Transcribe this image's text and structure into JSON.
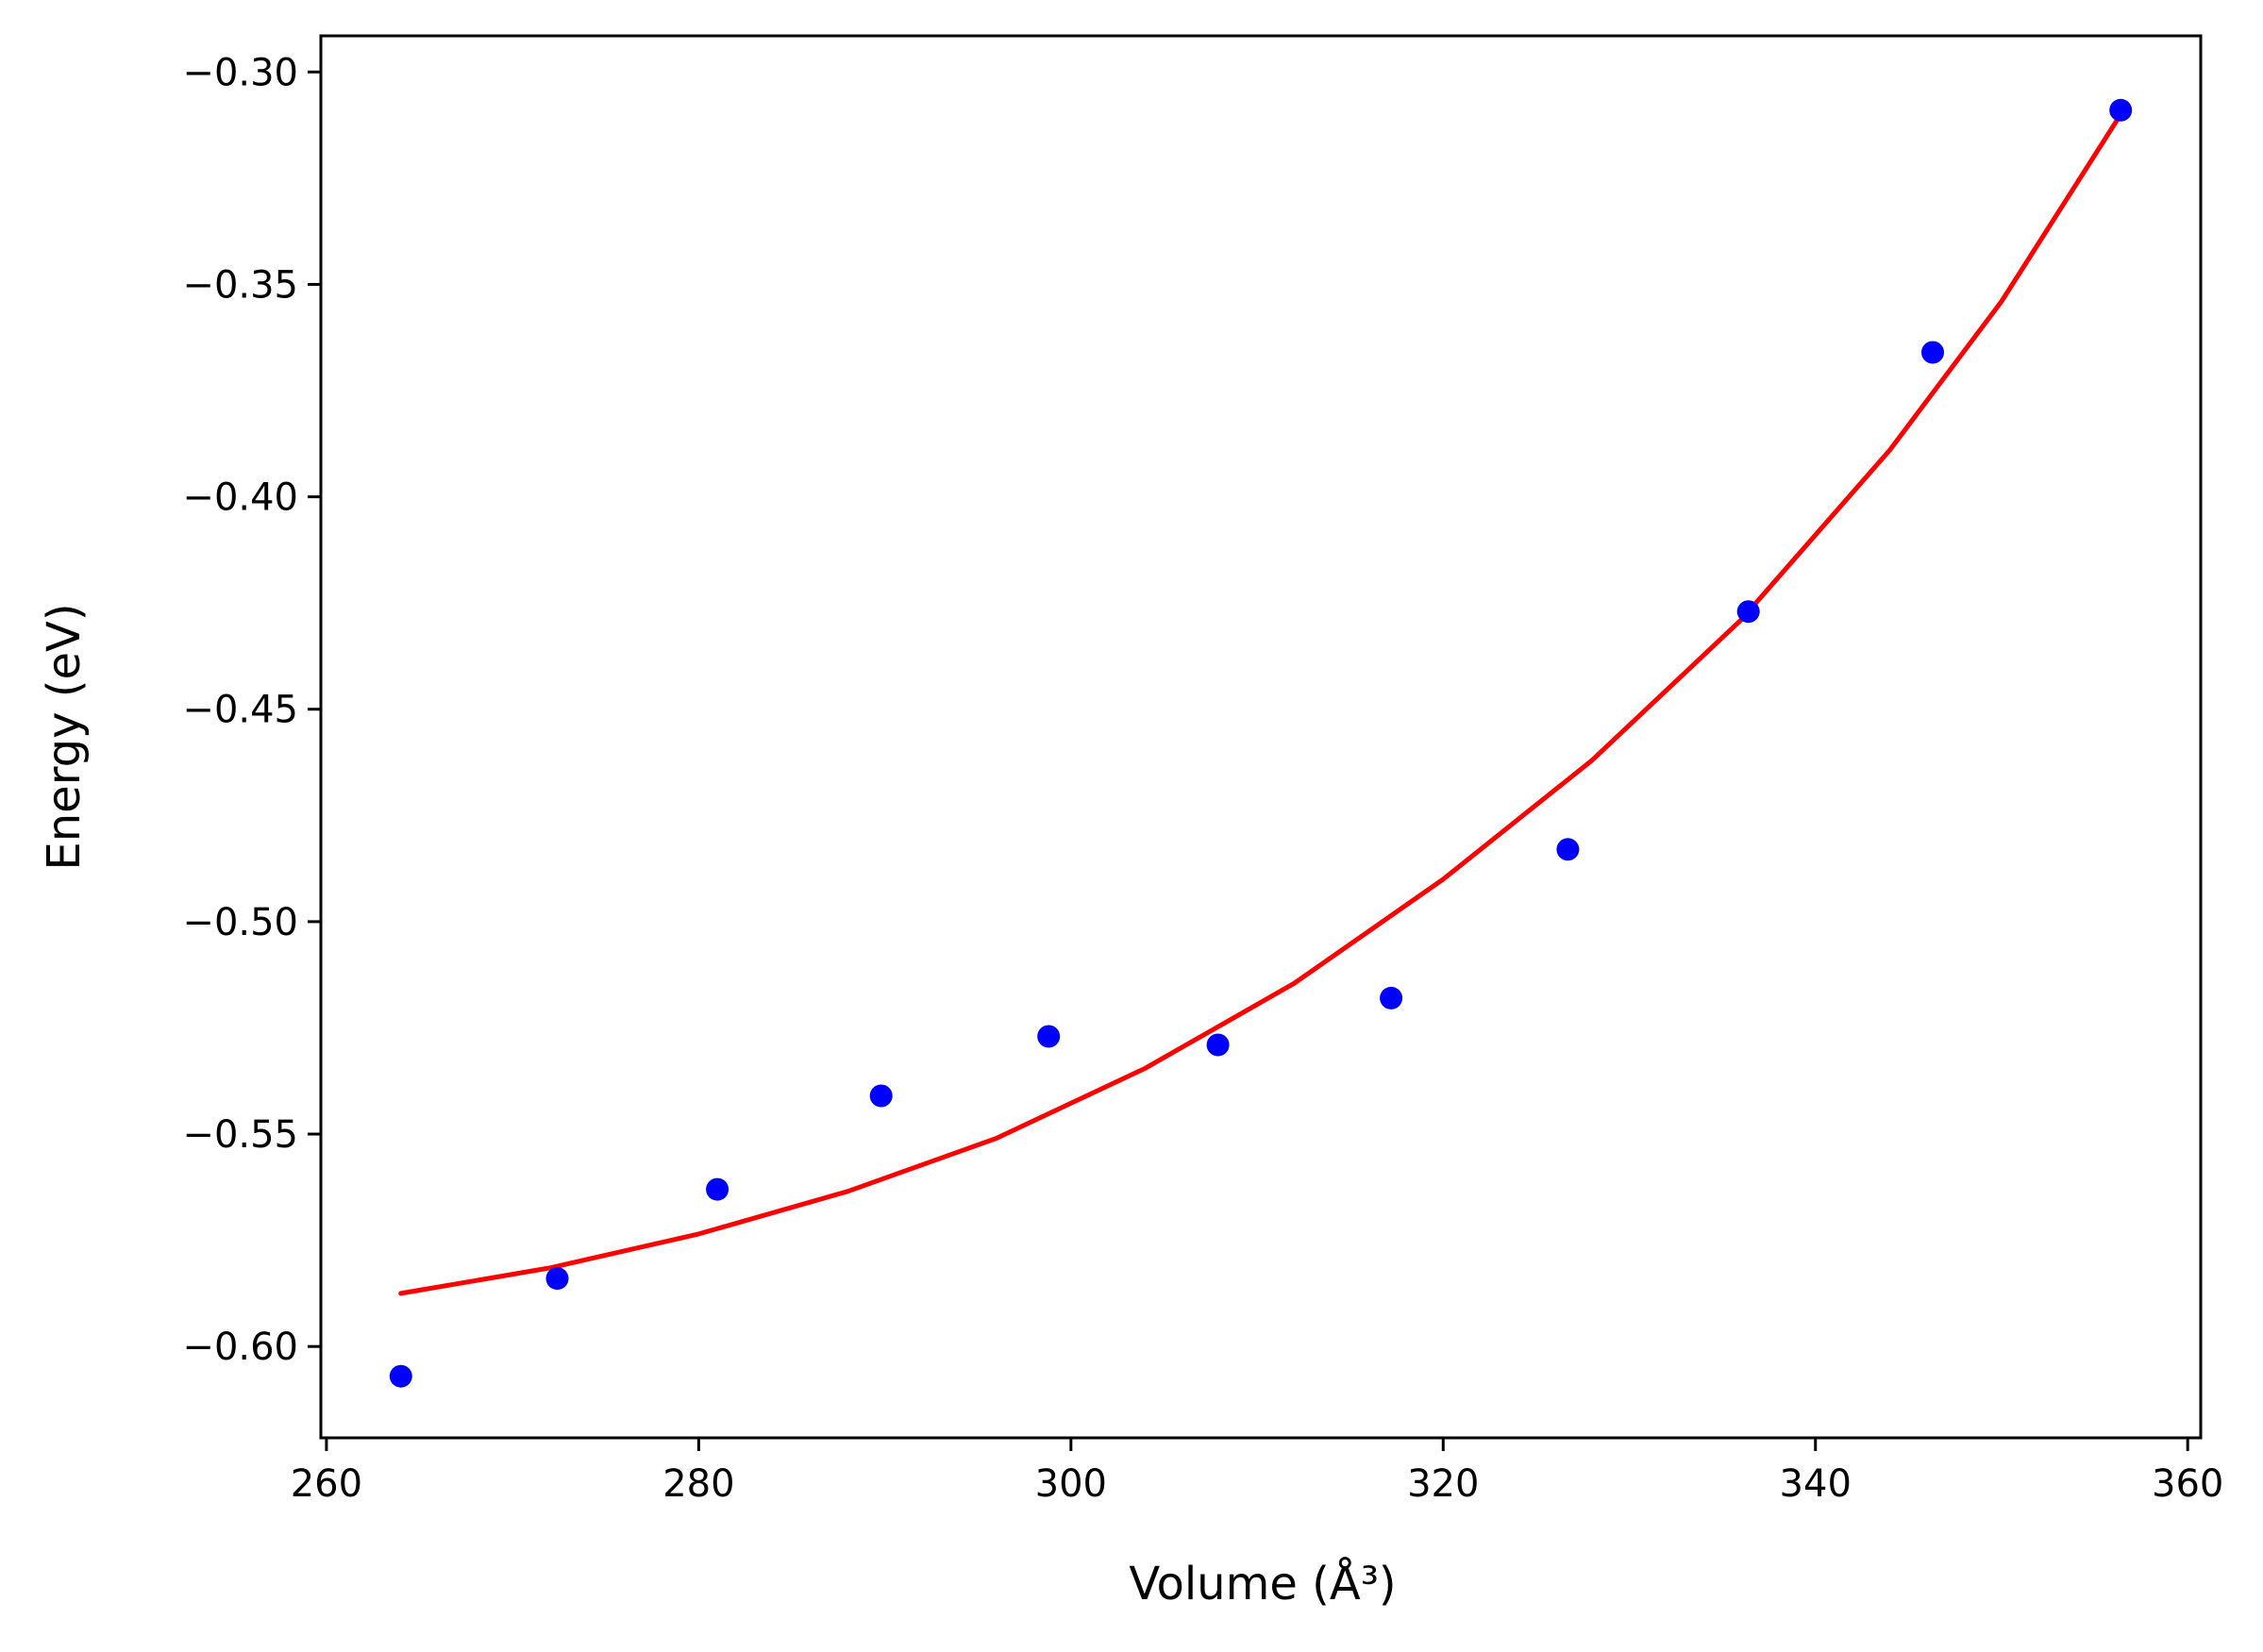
{
  "chart_data": {
    "type": "scatter",
    "xlabel": "Volume (Å³)",
    "ylabel": "Energy (eV)",
    "xlim": [
      259.7,
      360.7
    ],
    "ylim": [
      -0.6215,
      -0.2915
    ],
    "x_ticks": [
      260,
      280,
      300,
      320,
      340,
      360
    ],
    "x_tick_labels": [
      "260",
      "280",
      "300",
      "320",
      "340",
      "360"
    ],
    "y_ticks": [
      -0.3,
      -0.35,
      -0.4,
      -0.45,
      -0.5,
      -0.55,
      -0.6
    ],
    "y_tick_labels": [
      "−0.30",
      "−0.35",
      "−0.40",
      "−0.45",
      "−0.50",
      "−0.55",
      "−0.60"
    ],
    "grid": false,
    "series": [
      {
        "kind": "points",
        "color": "#0000ff",
        "x": [
          264.0,
          272.4,
          281.0,
          289.8,
          298.8,
          307.9,
          317.2,
          326.7,
          336.4,
          346.3,
          356.4
        ],
        "y": [
          -0.607,
          -0.584,
          -0.563,
          -0.541,
          -0.527,
          -0.529,
          -0.518,
          -0.483,
          -0.427,
          -0.366,
          -0.309
        ]
      },
      {
        "kind": "fit-curve",
        "color": "#ff0000",
        "x": [
          264.0,
          272.0,
          280.0,
          288.0,
          296.0,
          304.0,
          312.0,
          320.0,
          328.0,
          336.0,
          344.0,
          350.0,
          356.4
        ],
        "y": [
          -0.5875,
          -0.5815,
          -0.5735,
          -0.5635,
          -0.551,
          -0.5345,
          -0.5145,
          -0.49,
          -0.462,
          -0.429,
          -0.389,
          -0.354,
          -0.31
        ]
      }
    ]
  }
}
